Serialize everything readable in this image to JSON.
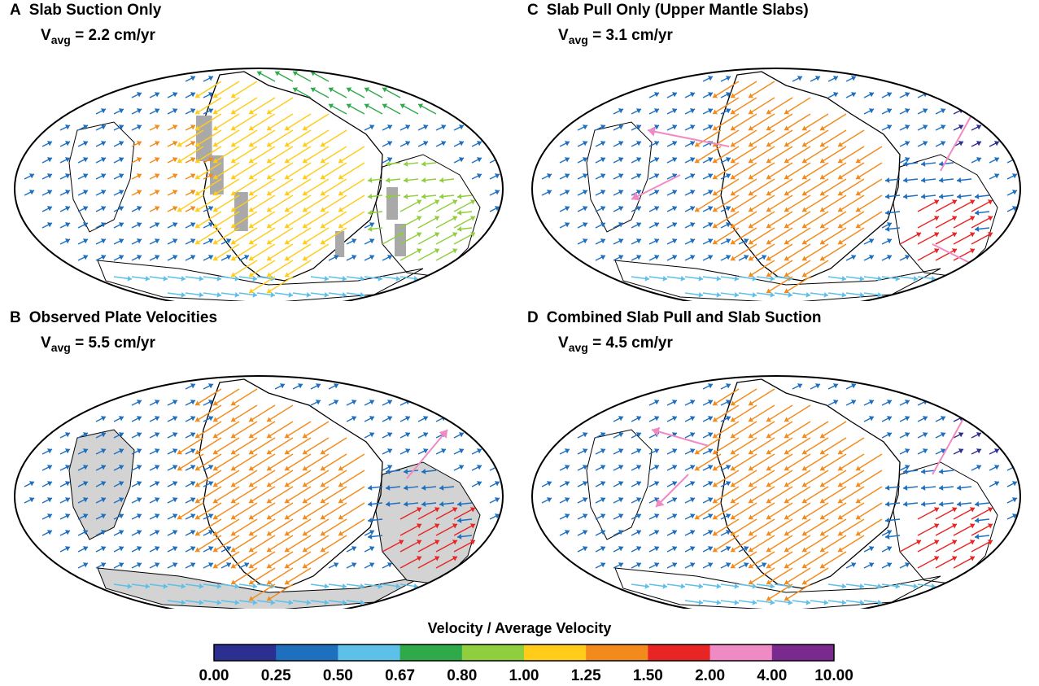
{
  "panels": [
    {
      "letter": "A",
      "title": "Slab Suction Only",
      "vavg_symbol": "V",
      "vavg_sub": "avg",
      "vavg_value": "= 2.2 cm/yr",
      "field": "suction"
    },
    {
      "letter": "C",
      "title": "Slab Pull Only (Upper Mantle Slabs)",
      "vavg_symbol": "V",
      "vavg_sub": "avg",
      "vavg_value": "= 3.1 cm/yr",
      "field": "pull"
    },
    {
      "letter": "B",
      "title": "Observed Plate Velocities",
      "vavg_symbol": "V",
      "vavg_sub": "avg",
      "vavg_value": "= 5.5 cm/yr",
      "field": "observed"
    },
    {
      "letter": "D",
      "title": "Combined Slab Pull and Slab Suction",
      "vavg_symbol": "V",
      "vavg_sub": "avg",
      "vavg_value": "= 4.5 cm/yr",
      "field": "combined"
    }
  ],
  "colorbar": {
    "title": "Velocity / Average Velocity",
    "ticks": [
      "0.00",
      "0.25",
      "0.50",
      "0.67",
      "0.80",
      "1.00",
      "1.25",
      "1.50",
      "2.00",
      "4.00",
      "10.00"
    ],
    "colors": [
      "#2b2f8f",
      "#1f6fbf",
      "#5cc0e8",
      "#2eaa4a",
      "#8fce3c",
      "#ffcc1a",
      "#f28a1c",
      "#e82424",
      "#f08ac4",
      "#7a2a8e"
    ]
  },
  "plate_colors": {
    "pacific": "#f28a1c",
    "nazca": "#e82424",
    "slab": "#a9a9a9",
    "continent": "#d3d3d3"
  }
}
